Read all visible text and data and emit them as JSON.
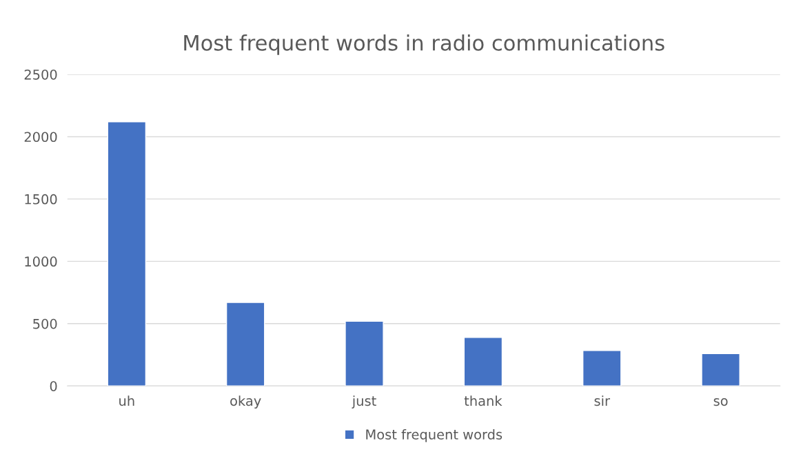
{
  "chart_data": {
    "type": "bar",
    "title": "Most frequent words in radio communications",
    "categories": [
      "uh",
      "okay",
      "just",
      "thank",
      "sir",
      "so"
    ],
    "series": [
      {
        "name": "Most frequent words",
        "color": "#4472c4",
        "values": [
          2120,
          670,
          520,
          390,
          285,
          260
        ]
      }
    ],
    "ylim": [
      0,
      2500
    ],
    "yticks": [
      0,
      500,
      1000,
      1500,
      2000,
      2500
    ],
    "grid": "y",
    "legend": "bottom"
  }
}
